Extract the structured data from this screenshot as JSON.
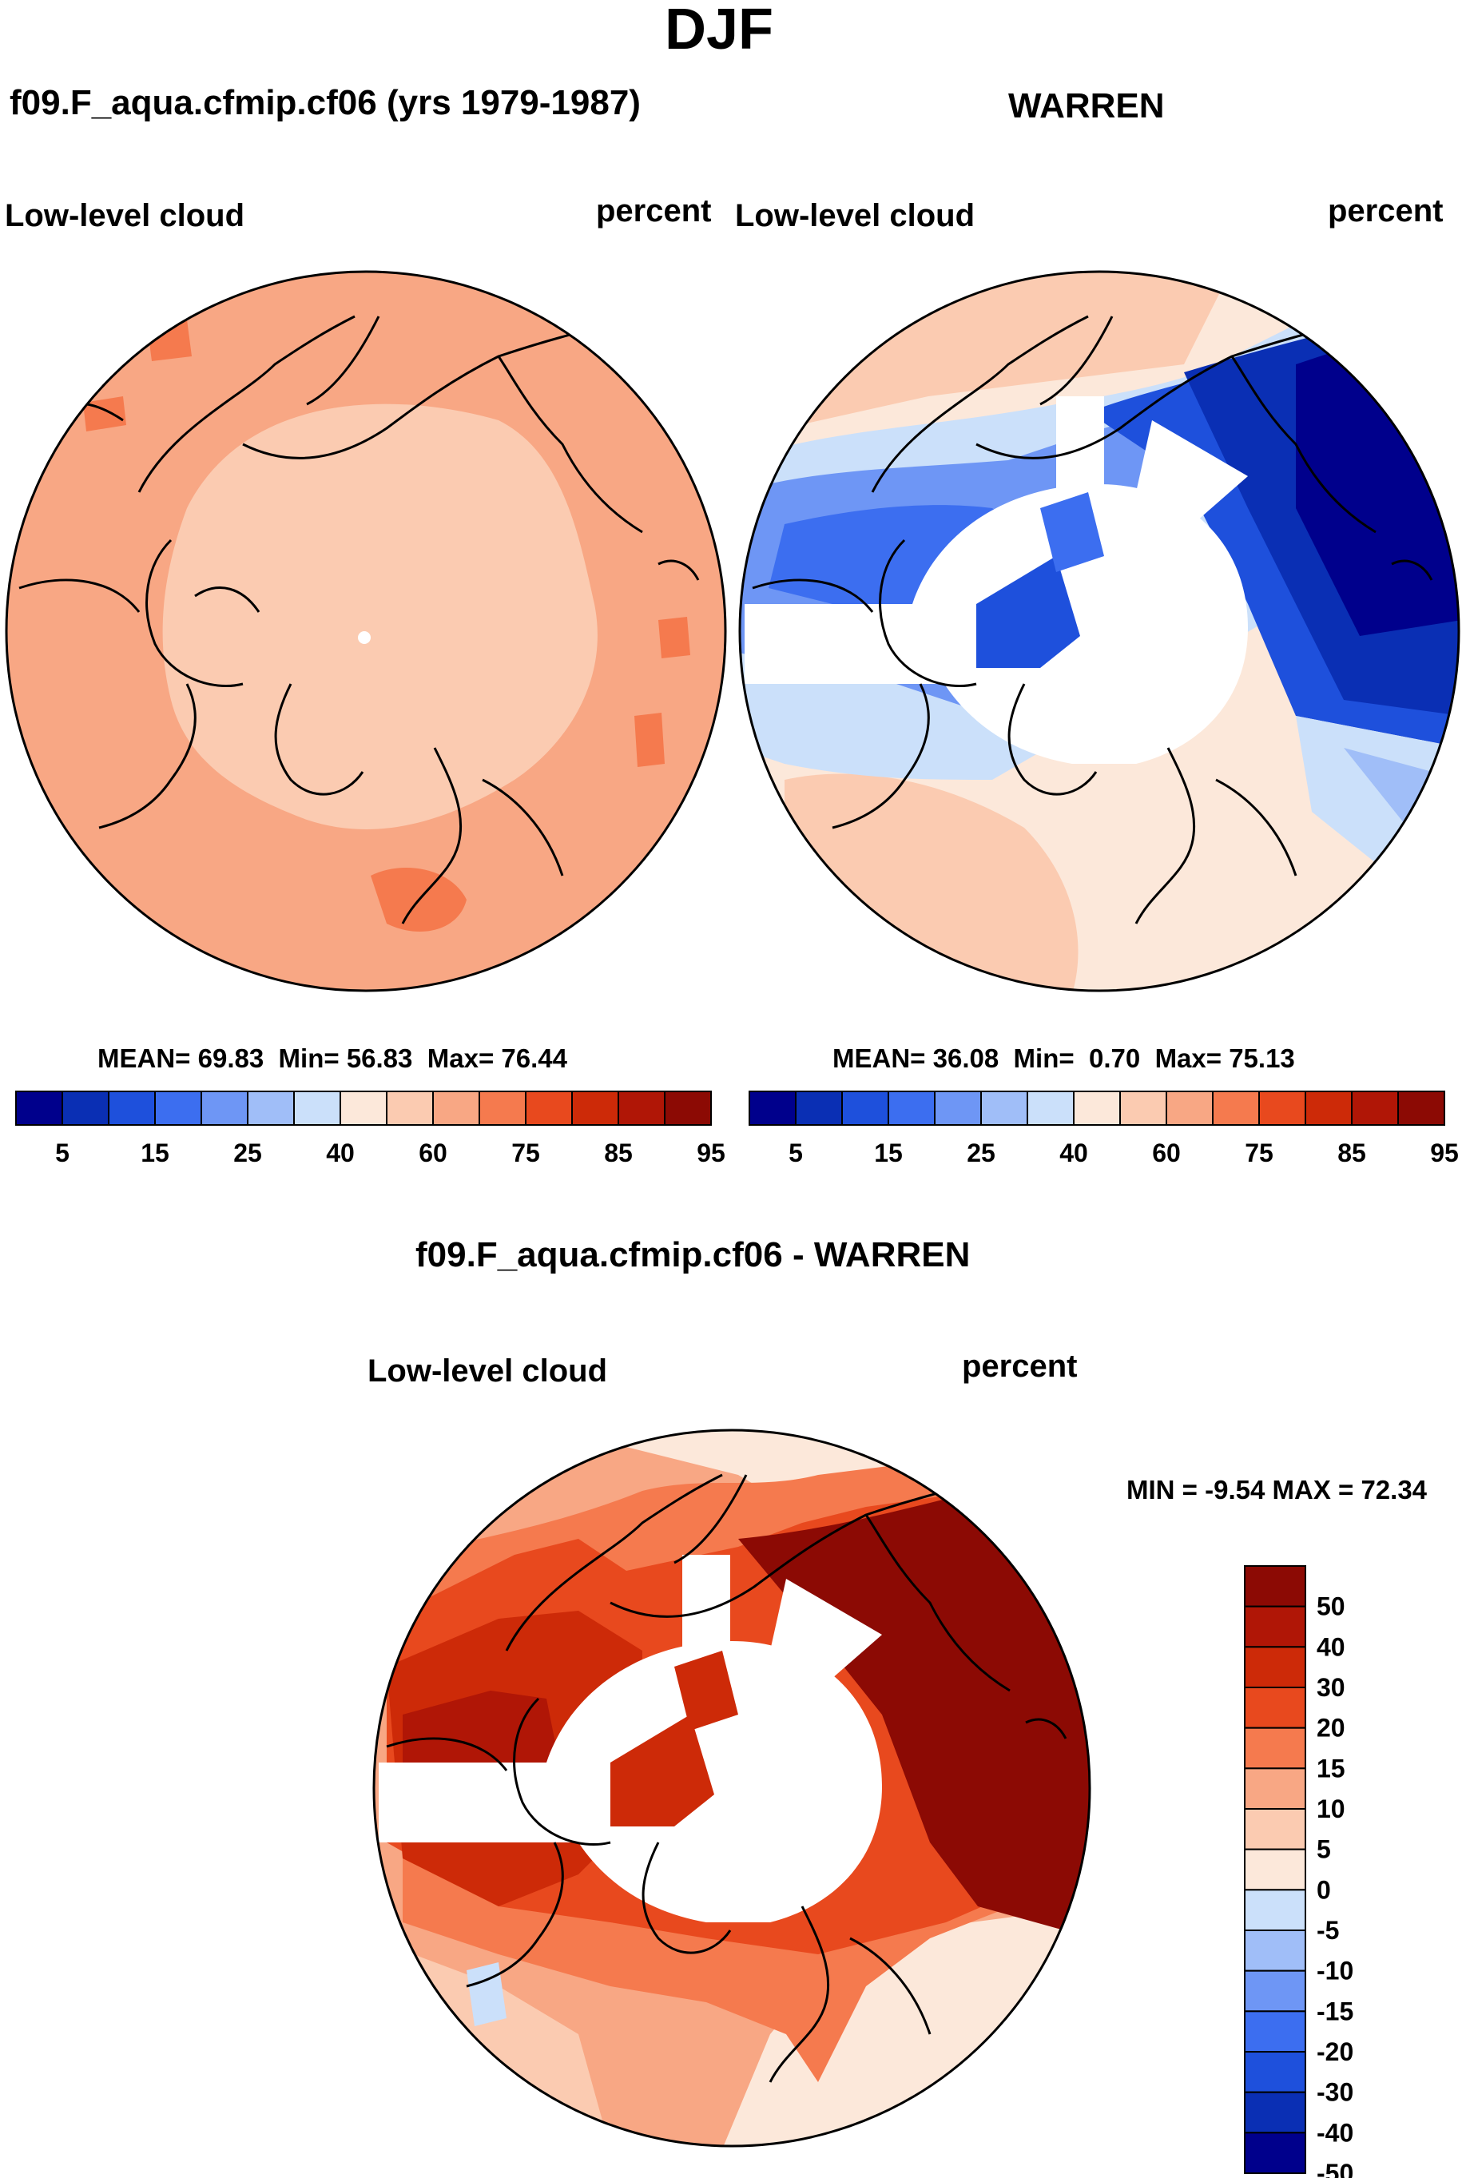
{
  "page_title": "DJF",
  "chart_data": [
    {
      "type": "polar-contour-map",
      "title": "f09.F_aqua.cfmip.cf06 (yrs 1979-1987)",
      "variable": "Low-level cloud",
      "units": "percent",
      "stats": {
        "mean_label": "MEAN=",
        "mean": "69.83",
        "min_label": "Min=",
        "min": "56.83",
        "max_label": "Max=",
        "max": "76.44"
      },
      "colorbar": {
        "orientation": "horizontal",
        "levels": [
          5,
          10,
          15,
          20,
          25,
          30,
          40,
          50,
          60,
          70,
          75,
          80,
          85,
          90,
          95
        ],
        "tick_labels": [
          "5",
          "15",
          "25",
          "40",
          "60",
          "75",
          "85",
          "95"
        ],
        "colors": [
          "#00008C",
          "#0A2FB4",
          "#1E50DC",
          "#3C6EF0",
          "#6E96F5",
          "#A0BEF8",
          "#CBE0FA",
          "#FCE8DA",
          "#FBCBB1",
          "#F8A784",
          "#F57A4E",
          "#E8491E",
          "#CD2A08",
          "#B01606",
          "#8C0A04"
        ]
      },
      "field_summary": {
        "dominant_bins": [
          "70-75",
          "60-70"
        ],
        "central_arctic": "60-70",
        "missing_data": false
      }
    },
    {
      "type": "polar-contour-map",
      "title": "WARREN",
      "variable": "Low-level cloud",
      "units": "percent",
      "stats": {
        "mean_label": "MEAN=",
        "mean": "36.08",
        "min_label": "Min=",
        "min": "0.70",
        "max_label": "Max=",
        "max": "75.13"
      },
      "colorbar": {
        "orientation": "horizontal",
        "levels": [
          5,
          10,
          15,
          20,
          25,
          30,
          40,
          50,
          60,
          70,
          75,
          80,
          85,
          90,
          95
        ],
        "tick_labels": [
          "5",
          "15",
          "25",
          "40",
          "60",
          "75",
          "85",
          "95"
        ],
        "colors": [
          "#00008C",
          "#0A2FB4",
          "#1E50DC",
          "#3C6EF0",
          "#6E96F5",
          "#A0BEF8",
          "#CBE0FA",
          "#FCE8DA",
          "#FBCBB1",
          "#F8A784",
          "#F57A4E",
          "#E8491E",
          "#CD2A08",
          "#B01606",
          "#8C0A04"
        ]
      },
      "field_summary": {
        "low_values_sector": "Siberia / North Pacific",
        "high_values_sector": "North Atlantic / Europe",
        "missing_data": true
      }
    },
    {
      "type": "polar-contour-map",
      "title": "f09.F_aqua.cfmip.cf06 - WARREN",
      "variable": "Low-level cloud",
      "units": "percent",
      "stats": {
        "min_label": "MIN =",
        "min": "-9.54",
        "max_label": "MAX =",
        "max": "72.34"
      },
      "colorbar": {
        "orientation": "vertical",
        "levels": [
          -50,
          -40,
          -30,
          -20,
          -15,
          -10,
          -5,
          0,
          5,
          10,
          15,
          20,
          30,
          40,
          50
        ],
        "tick_labels": [
          "50",
          "40",
          "30",
          "20",
          "15",
          "10",
          "5",
          "0",
          "-5",
          "-10",
          "-15",
          "-20",
          "-30",
          "-40",
          "-50"
        ],
        "colors": [
          "#00008C",
          "#0A2FB4",
          "#1E50DC",
          "#3C6EF0",
          "#6E96F5",
          "#A0BEF8",
          "#CBE0FA",
          "#FCE8DA",
          "#FBCBB1",
          "#F8A784",
          "#F57A4E",
          "#E8491E",
          "#CD2A08",
          "#B01606",
          "#8C0A04"
        ]
      },
      "field_summary": {
        "high_values_sector": "Siberia / North Pacific",
        "near_zero_sector": "North Atlantic",
        "missing_data": true
      }
    }
  ]
}
